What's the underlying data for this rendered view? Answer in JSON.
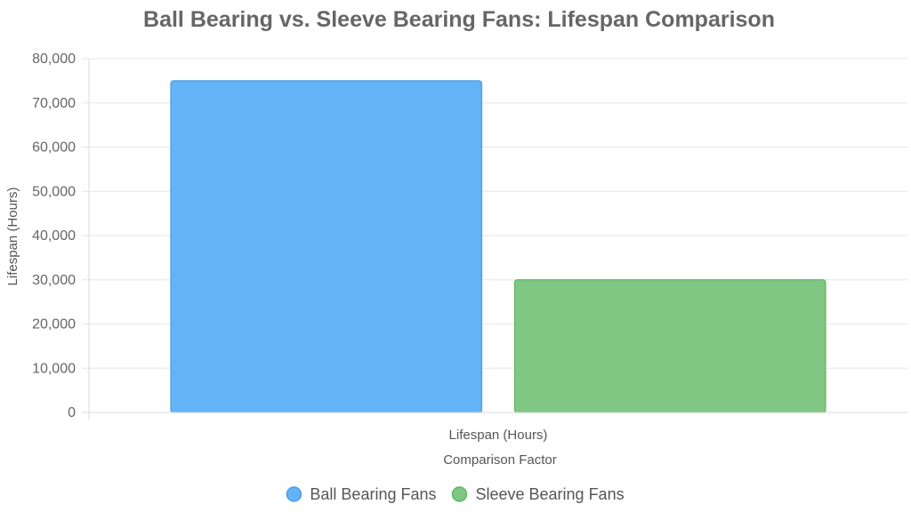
{
  "chart_data": {
    "type": "bar",
    "title": "Ball Bearing vs. Sleeve Bearing Fans: Lifespan Comparison",
    "xlabel": "Comparison Factor",
    "ylabel": "Lifespan (Hours)",
    "categories": [
      "Lifespan (Hours)"
    ],
    "ylim": [
      0,
      80000
    ],
    "yticks": [
      0,
      10000,
      20000,
      30000,
      40000,
      50000,
      60000,
      70000,
      80000
    ],
    "ytick_labels": [
      "0",
      "10,000",
      "20,000",
      "30,000",
      "40,000",
      "50,000",
      "60,000",
      "70,000",
      "80,000"
    ],
    "grid": true,
    "legend_position": "bottom",
    "series": [
      {
        "name": "Ball Bearing Fans",
        "values": [
          75000
        ],
        "color": "#63b3f7",
        "border_color": "#4a9ee6"
      },
      {
        "name": "Sleeve Bearing Fans",
        "values": [
          30000
        ],
        "color": "#81c784",
        "border_color": "#5cb85f"
      }
    ]
  }
}
